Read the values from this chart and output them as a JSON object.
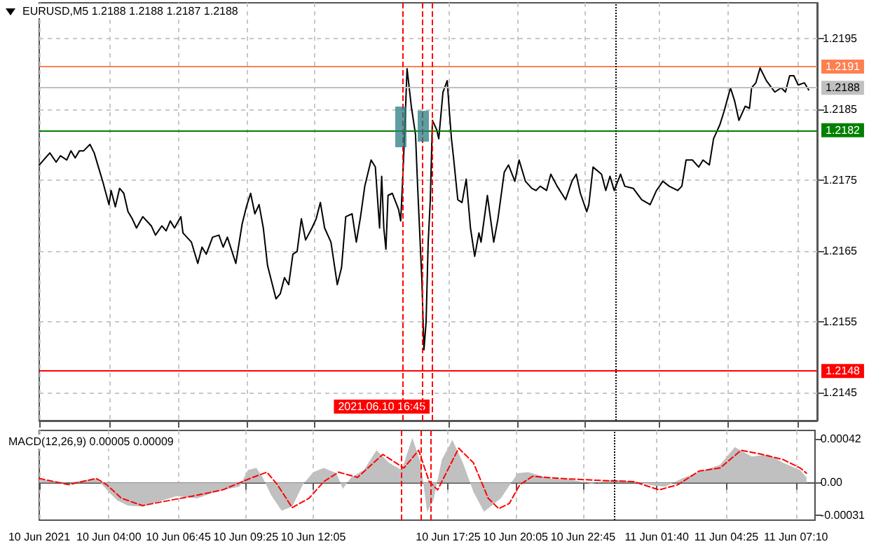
{
  "chart_data": [
    {
      "type": "line",
      "title": "EURUSD,M5 1.2188 1.2188 1.2187 1.2188",
      "tick_labels": "y",
      "grid": true,
      "xlim": [
        "2021-06-10T01:15",
        "2021-06-11T07:55"
      ],
      "xticks": [
        {
          "value": "2021-06-10T01:15",
          "label": null
        },
        {
          "value": "2021-06-10T04:00",
          "label": null
        },
        {
          "value": "2021-06-10T06:45",
          "label": null
        },
        {
          "value": "2021-06-10T09:25",
          "label": null
        },
        {
          "value": "2021-06-10T12:05",
          "label": null
        },
        {
          "value": "2021-06-10T17:25",
          "label": null
        },
        {
          "value": "2021-06-10T20:05",
          "label": null
        },
        {
          "value": "2021-06-10T22:45",
          "label": null
        },
        {
          "value": "2021-06-11T01:40",
          "label": null
        },
        {
          "value": "2021-06-11T04:25",
          "label": null
        },
        {
          "value": "2021-06-11T07:10",
          "label": null
        }
      ],
      "ylim": [
        1.2141,
        1.22
      ],
      "yticks": [
        1.2145,
        1.2155,
        1.2165,
        1.2175,
        1.2185,
        1.2195
      ],
      "ref_lines": [
        {
          "axis": "y",
          "value": 1.2191,
          "label": "1.2191",
          "color": "#ff7f50"
        },
        {
          "axis": "y",
          "value": 1.2188,
          "label": "1.2188",
          "color": "#c0c0c0"
        },
        {
          "axis": "y",
          "value": 1.2182,
          "label": "1.2182",
          "color": "#008000"
        },
        {
          "axis": "y",
          "value": 1.2148,
          "label": "1.2148",
          "color": "#ff0000"
        },
        {
          "axis": "x",
          "value": "2021-06-10T15:35",
          "color": "#ff0000",
          "line_style": "dashed"
        },
        {
          "axis": "x",
          "value": "2021-06-10T16:20",
          "color": "#ff0000",
          "line_style": "dashed"
        },
        {
          "axis": "x",
          "value": "2021-06-10T16:45",
          "label": "2021.06.10 16:45",
          "color": "#ff0000",
          "line_style": "dashed"
        },
        {
          "axis": "x",
          "value": "2021-06-11T00:00",
          "color": "#000000",
          "line_style": "dotted"
        }
      ],
      "series": [
        {
          "color": "#000000",
          "x": [
            "2021-06-10T01:15",
            "2021-06-10T01:40",
            "2021-06-10T01:55",
            "2021-06-10T02:05",
            "2021-06-10T02:20",
            "2021-06-10T02:30",
            "2021-06-10T02:40",
            "2021-06-10T02:50",
            "2021-06-10T03:00",
            "2021-06-10T03:15",
            "2021-06-10T03:25",
            "2021-06-10T03:35",
            "2021-06-10T03:45",
            "2021-06-10T04:00",
            "2021-06-10T04:05",
            "2021-06-10T04:15",
            "2021-06-10T04:25",
            "2021-06-10T04:35",
            "2021-06-10T04:45",
            "2021-06-10T04:55",
            "2021-06-10T05:05",
            "2021-06-10T05:20",
            "2021-06-10T05:40",
            "2021-06-10T05:50",
            "2021-06-10T06:05",
            "2021-06-10T06:15",
            "2021-06-10T06:25",
            "2021-06-10T06:35",
            "2021-06-10T06:50",
            "2021-06-10T06:55",
            "2021-06-10T07:15",
            "2021-06-10T07:30",
            "2021-06-10T07:40",
            "2021-06-10T07:50",
            "2021-06-10T08:05",
            "2021-06-10T08:20",
            "2021-06-10T08:30",
            "2021-06-10T08:40",
            "2021-06-10T09:00",
            "2021-06-10T09:15",
            "2021-06-10T09:25",
            "2021-06-10T09:35",
            "2021-06-10T09:45",
            "2021-06-10T09:55",
            "2021-06-10T10:05",
            "2021-06-10T10:15",
            "2021-06-10T10:35",
            "2021-06-10T10:45",
            "2021-06-10T10:55",
            "2021-06-10T11:05",
            "2021-06-10T11:15",
            "2021-06-10T11:25",
            "2021-06-10T11:35",
            "2021-06-10T11:45",
            "2021-06-10T12:00",
            "2021-06-10T12:10",
            "2021-06-10T12:20",
            "2021-06-10T12:30",
            "2021-06-10T12:45",
            "2021-06-10T12:50",
            "2021-06-10T13:00",
            "2021-06-10T13:10",
            "2021-06-10T13:20",
            "2021-06-10T13:35",
            "2021-06-10T13:45",
            "2021-06-10T13:55",
            "2021-06-10T14:05",
            "2021-06-10T14:20",
            "2021-06-10T14:30",
            "2021-06-10T14:40",
            "2021-06-10T14:45",
            "2021-06-10T14:50",
            "2021-06-10T14:55",
            "2021-06-10T15:00",
            "2021-06-10T15:10",
            "2021-06-10T15:25",
            "2021-06-10T15:30",
            "2021-06-10T15:35",
            "2021-06-10T15:40",
            "2021-06-10T15:45",
            "2021-06-10T15:55",
            "2021-06-10T16:05",
            "2021-06-10T16:10",
            "2021-06-10T16:20",
            "2021-06-10T16:25",
            "2021-06-10T16:30",
            "2021-06-10T16:35",
            "2021-06-10T16:40",
            "2021-06-10T16:45",
            "2021-06-10T16:55",
            "2021-06-10T17:00",
            "2021-06-10T17:10",
            "2021-06-10T17:20",
            "2021-06-10T17:25",
            "2021-06-10T17:30",
            "2021-06-10T17:35",
            "2021-06-10T17:45",
            "2021-06-10T17:55",
            "2021-06-10T18:05",
            "2021-06-10T18:15",
            "2021-06-10T18:25",
            "2021-06-10T18:35",
            "2021-06-10T18:40",
            "2021-06-10T18:55",
            "2021-06-10T19:10",
            "2021-06-10T19:20",
            "2021-06-10T19:35",
            "2021-06-10T19:45",
            "2021-06-10T20:00",
            "2021-06-10T20:10",
            "2021-06-10T20:25",
            "2021-06-10T20:40",
            "2021-06-10T20:50",
            "2021-06-10T21:00",
            "2021-06-10T21:15",
            "2021-06-10T21:25",
            "2021-06-10T21:40",
            "2021-06-10T22:00",
            "2021-06-10T22:15",
            "2021-06-10T22:25",
            "2021-06-10T22:35",
            "2021-06-10T22:50",
            "2021-06-10T22:55",
            "2021-06-10T23:05",
            "2021-06-10T23:25",
            "2021-06-10T23:35",
            "2021-06-10T23:45",
            "2021-06-10T23:55",
            "2021-06-11T00:10",
            "2021-06-11T00:20",
            "2021-06-11T00:40",
            "2021-06-11T01:00",
            "2021-06-11T01:20",
            "2021-06-11T01:35",
            "2021-06-11T01:50",
            "2021-06-11T02:05",
            "2021-06-11T02:25",
            "2021-06-11T02:35",
            "2021-06-11T02:45",
            "2021-06-11T03:00",
            "2021-06-11T03:15",
            "2021-06-11T03:25",
            "2021-06-11T03:40",
            "2021-06-11T03:50",
            "2021-06-11T04:05",
            "2021-06-11T04:15",
            "2021-06-11T04:30",
            "2021-06-11T04:40",
            "2021-06-11T04:50",
            "2021-06-11T05:05",
            "2021-06-11T05:15",
            "2021-06-11T05:20",
            "2021-06-11T05:30",
            "2021-06-11T05:40",
            "2021-06-11T05:55",
            "2021-06-11T06:15",
            "2021-06-11T06:30",
            "2021-06-11T06:40",
            "2021-06-11T06:50",
            "2021-06-11T07:00",
            "2021-06-11T07:10",
            "2021-06-11T07:25",
            "2021-06-11T07:35"
          ],
          "values": [
            1.21771,
            1.21788,
            1.21775,
            1.21784,
            1.21778,
            1.21791,
            1.21781,
            1.21791,
            1.21791,
            1.218,
            1.21788,
            1.21768,
            1.21748,
            1.21715,
            1.21735,
            1.21712,
            1.21738,
            1.21731,
            1.21705,
            1.21695,
            1.21682,
            1.21698,
            1.21685,
            1.21672,
            1.21685,
            1.21678,
            1.21692,
            1.21682,
            1.21698,
            1.21675,
            1.21662,
            1.21632,
            1.21655,
            1.21645,
            1.21669,
            1.21672,
            1.21655,
            1.21669,
            1.21632,
            1.21688,
            1.21712,
            1.21731,
            1.21702,
            1.21715,
            1.21682,
            1.21629,
            1.21582,
            1.21589,
            1.21612,
            1.21602,
            1.21645,
            1.21649,
            1.21695,
            1.21665,
            1.21682,
            1.21695,
            1.21718,
            1.21682,
            1.21662,
            1.21642,
            1.21602,
            1.21626,
            1.21698,
            1.21702,
            1.21662,
            1.21698,
            1.21741,
            1.21778,
            1.21768,
            1.21682,
            1.21755,
            1.21682,
            1.21652,
            1.21728,
            1.21731,
            1.21708,
            1.21692,
            1.21755,
            1.21828,
            1.21907,
            1.21854,
            1.21814,
            1.21741,
            1.21609,
            1.2151,
            1.21549,
            1.21662,
            1.21722,
            1.21834,
            1.21821,
            1.21808,
            1.21874,
            1.2189,
            1.21847,
            1.21808,
            1.21781,
            1.21722,
            1.21718,
            1.21751,
            1.21682,
            1.21642,
            1.21675,
            1.21662,
            1.21728,
            1.21662,
            1.21695,
            1.21761,
            1.21771,
            1.21748,
            1.21778,
            1.21748,
            1.21738,
            1.21735,
            1.21741,
            1.21735,
            1.21758,
            1.21741,
            1.21722,
            1.21748,
            1.21758,
            1.21731,
            1.21705,
            1.21715,
            1.21768,
            1.21758,
            1.21735,
            1.21755,
            1.21735,
            1.21758,
            1.21741,
            1.21738,
            1.21722,
            1.21715,
            1.21735,
            1.21748,
            1.21741,
            1.21735,
            1.21741,
            1.21778,
            1.21778,
            1.21768,
            1.21778,
            1.21771,
            1.21808,
            1.21828,
            1.21847,
            1.2188,
            1.21861,
            1.21834,
            1.21854,
            1.21851,
            1.2188,
            1.21887,
            1.21908,
            1.2189,
            1.21874,
            1.2188,
            1.21874,
            1.21897,
            1.21897,
            1.21884,
            1.21887,
            1.21877
          ]
        }
      ]
    },
    {
      "type": "line",
      "title": "MACD(12,26,9) 0.00005 0.00009",
      "grid": "x",
      "xlim": [
        "2021-06-10T01:15",
        "2021-06-11T07:55"
      ],
      "xticks": [
        {
          "value": "2021-06-10T01:15",
          "label": "10 Jun 2021"
        },
        {
          "value": "2021-06-10T04:00",
          "label": "10 Jun 04:00"
        },
        {
          "value": "2021-06-10T06:45",
          "label": "10 Jun 06:45"
        },
        {
          "value": "2021-06-10T09:25",
          "label": "10 Jun 09:25"
        },
        {
          "value": "2021-06-10T12:05",
          "label": "10 Jun 12:05"
        },
        {
          "value": "2021-06-10T17:25",
          "label": "10 Jun 17:25"
        },
        {
          "value": "2021-06-10T20:05",
          "label": "10 Jun 20:05"
        },
        {
          "value": "2021-06-10T22:45",
          "label": "10 Jun 22:45"
        },
        {
          "value": "2021-06-11T01:40",
          "label": "11 Jun 01:40"
        },
        {
          "value": "2021-06-11T04:25",
          "label": "11 Jun 04:25"
        },
        {
          "value": "2021-06-11T07:10",
          "label": "11 Jun 07:10"
        }
      ],
      "ylim": [
        -0.00036,
        0.0005
      ],
      "yticks": [
        -0.00031,
        {
          "value": 0,
          "label": "0.00"
        },
        0.00042
      ],
      "ref_lines": [
        {
          "axis": "x",
          "value": "2021-06-10T15:35",
          "color": "#ff0000",
          "line_style": "dashed"
        },
        {
          "axis": "x",
          "value": "2021-06-10T16:20",
          "color": "#ff0000",
          "line_style": "dashed"
        },
        {
          "axis": "x",
          "value": "2021-06-10T16:45",
          "color": "#ff0000",
          "line_style": "dashed"
        },
        {
          "axis": "x",
          "value": "2021-06-11T00:00",
          "color": "#000000",
          "line_style": "dotted"
        }
      ],
      "series": [
        {
          "type": "area",
          "color": "#c0c0c0",
          "x": [
            "2021-06-10T01:15",
            "2021-06-10T02:25",
            "2021-06-10T03:30",
            "2021-06-10T03:40",
            "2021-06-10T04:00",
            "2021-06-10T04:20",
            "2021-06-10T04:45",
            "2021-06-10T05:20",
            "2021-06-10T06:00",
            "2021-06-10T06:40",
            "2021-06-10T07:30",
            "2021-06-10T08:20",
            "2021-06-10T09:10",
            "2021-06-10T09:30",
            "2021-06-10T09:50",
            "2021-06-10T10:05",
            "2021-06-10T10:25",
            "2021-06-10T10:50",
            "2021-06-10T11:15",
            "2021-06-10T11:40",
            "2021-06-10T12:05",
            "2021-06-10T12:30",
            "2021-06-10T13:00",
            "2021-06-10T13:15",
            "2021-06-10T13:35",
            "2021-06-10T14:05",
            "2021-06-10T14:35",
            "2021-06-10T15:05",
            "2021-06-10T15:35",
            "2021-06-10T16:00",
            "2021-06-10T16:20",
            "2021-06-10T16:35",
            "2021-06-10T16:50",
            "2021-06-10T17:10",
            "2021-06-10T17:35",
            "2021-06-10T18:00",
            "2021-06-10T18:25",
            "2021-06-10T18:50",
            "2021-06-10T19:30",
            "2021-06-10T20:10",
            "2021-06-10T20:35",
            "2021-06-10T21:25",
            "2021-06-10T22:15",
            "2021-06-10T23:05",
            "2021-06-10T23:55",
            "2021-06-11T00:45",
            "2021-06-11T01:35",
            "2021-06-11T02:00",
            "2021-06-11T02:40",
            "2021-06-11T03:20",
            "2021-06-11T04:10",
            "2021-06-11T04:45",
            "2021-06-11T05:25",
            "2021-06-11T06:05",
            "2021-06-11T06:40",
            "2021-06-11T07:20",
            "2021-06-11T07:35"
          ],
          "values": [
            3e-05,
            0,
            4e-05,
            0,
            -9e-05,
            -0.00017,
            -0.00022,
            -0.00023,
            -0.00018,
            -0.00013,
            -0.00015,
            -8e-05,
            -4e-05,
            0.00012,
            0.00014,
            5e-05,
            -0.00012,
            -0.00027,
            -0.00023,
            -2e-05,
            0.0001,
            0.00014,
            9e-05,
            -6e-05,
            5e-05,
            0.00012,
            0.00031,
            0.00019,
            0.00012,
            0.00043,
            0.00019,
            -0.00028,
            -0.00017,
            0.00022,
            0.00041,
            0.00019,
            -9e-05,
            -0.00028,
            -0.00015,
            9e-05,
            0.0001,
            4e-05,
            3e-05,
            -1e-05,
            3e-05,
            1e-05,
            -3e-05,
            -4e-05,
            4e-05,
            0.0001,
            0.00017,
            0.00034,
            0.00025,
            0.00027,
            0.00019,
            0.00012,
            5e-05
          ]
        },
        {
          "color": "#ff0000",
          "line_style": "dashed",
          "x": [
            "2021-06-10T01:15",
            "2021-06-10T02:25",
            "2021-06-10T03:30",
            "2021-06-10T03:55",
            "2021-06-10T04:30",
            "2021-06-10T05:20",
            "2021-06-10T06:25",
            "2021-06-10T07:30",
            "2021-06-10T08:30",
            "2021-06-10T09:35",
            "2021-06-10T10:15",
            "2021-06-10T10:40",
            "2021-06-10T11:15",
            "2021-06-10T11:55",
            "2021-06-10T12:30",
            "2021-06-10T13:05",
            "2021-06-10T13:50",
            "2021-06-10T14:50",
            "2021-06-10T15:40",
            "2021-06-10T16:15",
            "2021-06-10T16:40",
            "2021-06-10T17:00",
            "2021-06-10T17:50",
            "2021-06-10T18:25",
            "2021-06-10T19:00",
            "2021-06-10T19:25",
            "2021-06-10T19:50",
            "2021-06-10T20:15",
            "2021-06-10T20:45",
            "2021-06-10T21:50",
            "2021-06-10T23:30",
            "2021-06-11T00:45",
            "2021-06-11T01:45",
            "2021-06-11T02:30",
            "2021-06-11T03:20",
            "2021-06-11T04:10",
            "2021-06-11T05:00",
            "2021-06-11T05:50",
            "2021-06-11T06:40",
            "2021-06-11T07:20",
            "2021-06-11T07:35"
          ],
          "values": [
            4e-05,
            -2e-05,
            4e-05,
            -2e-05,
            -0.00015,
            -0.00022,
            -0.00017,
            -0.00012,
            -7e-05,
            4e-05,
            0.0001,
            -2e-05,
            -0.00024,
            -0.00015,
            1e-05,
            0.0001,
            5e-05,
            0.00027,
            0.00014,
            0.00031,
            1e-05,
            -7e-05,
            0.00033,
            0.00019,
            -0.00015,
            -0.00025,
            -0.0002,
            -2e-05,
            6e-05,
            4e-05,
            2e-05,
            1e-05,
            -7e-05,
            -2e-05,
            0.00011,
            0.00014,
            0.00031,
            0.00027,
            0.00022,
            0.00014,
            9e-05
          ]
        }
      ]
    }
  ]
}
